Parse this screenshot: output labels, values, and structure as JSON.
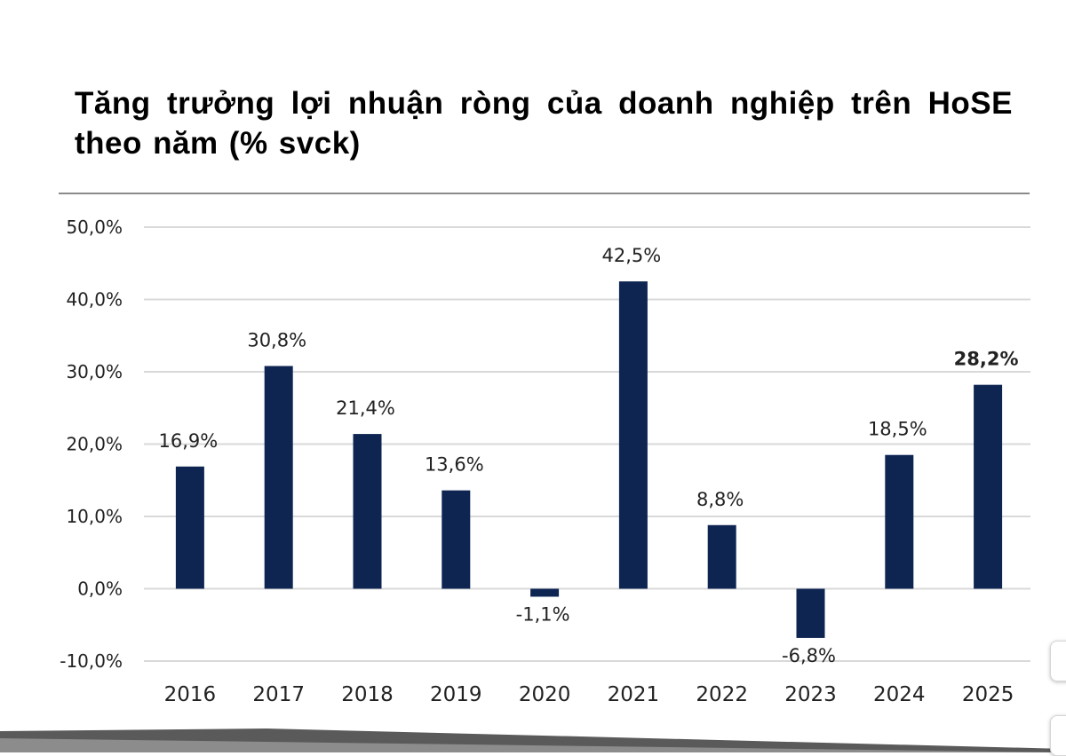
{
  "colors": {
    "bar": "#0e2552",
    "grid": "#d9d9d9",
    "rule": "#8a8a8a"
  },
  "chart_data": {
    "type": "bar",
    "title": "Tăng trưởng lợi nhuận ròng của doanh nghiệp trên HoSE theo năm (% svck)",
    "xlabel": "",
    "ylabel": "",
    "categories": [
      "2016",
      "2017",
      "2018",
      "2019",
      "2020",
      "2021",
      "2022",
      "2023",
      "2024",
      "2025"
    ],
    "values": [
      16.9,
      30.8,
      21.4,
      13.6,
      -1.1,
      42.5,
      8.8,
      -6.8,
      18.5,
      28.2
    ],
    "data_labels": [
      "16,9%",
      "30,8%",
      "21,4%",
      "13,6%",
      "-1,1%",
      "42,5%",
      "8,8%",
      "-6,8%",
      "18,5%",
      "28,2%"
    ],
    "bold_label_categories": [
      "2025"
    ],
    "ylim": [
      -10,
      50
    ],
    "yticks": [
      50,
      40,
      30,
      20,
      10,
      0,
      -10
    ],
    "ytick_labels": [
      "50,0%",
      "40,0%",
      "30,0%",
      "20,0%",
      "10,0%",
      "0,0%",
      "-10,0%"
    ],
    "grid": true,
    "legend": "none"
  }
}
